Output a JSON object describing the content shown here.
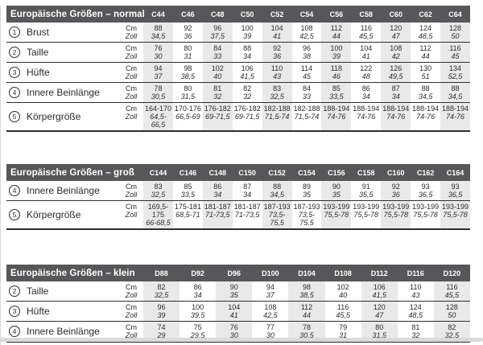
{
  "colors": {
    "header_bar": "#57575a",
    "column_shade": "#e9e9ea",
    "text": "#2b2b2d",
    "bottom_band": "#dadada"
  },
  "tables": [
    {
      "title": "Europäische Größen – normal",
      "columns": [
        "C44",
        "C46",
        "C48",
        "C50",
        "C52",
        "C54",
        "C56",
        "C58",
        "C60",
        "C62",
        "C64"
      ],
      "unit_labels": [
        "Cm",
        "Zoll"
      ],
      "rows": [
        {
          "num": "1",
          "label": "Brust",
          "cm": [
            "88",
            "92",
            "96",
            "100",
            "104",
            "108",
            "112",
            "116",
            "120",
            "124",
            "128"
          ],
          "zoll": [
            "34,5",
            "36",
            "37,5",
            "39",
            "41",
            "42,5",
            "44",
            "45,5",
            "47",
            "48,5",
            "50"
          ]
        },
        {
          "num": "2",
          "label": "Taille",
          "cm": [
            "76",
            "80",
            "84",
            "88",
            "92",
            "96",
            "100",
            "104",
            "108",
            "112",
            "116"
          ],
          "zoll": [
            "30",
            "31",
            "33",
            "34",
            "36",
            "38",
            "39",
            "41",
            "42",
            "44",
            "45"
          ]
        },
        {
          "num": "3",
          "label": "Hüfte",
          "cm": [
            "94",
            "98",
            "102",
            "106",
            "110",
            "114",
            "118",
            "122",
            "126",
            "130",
            "134"
          ],
          "zoll": [
            "37",
            "38,5",
            "40",
            "41,5",
            "43",
            "45",
            "46",
            "48",
            "49,5",
            "51",
            "52,5"
          ]
        },
        {
          "num": "4",
          "label": "Innere Beinlänge",
          "cm": [
            "78",
            "80",
            "81",
            "82",
            "83",
            "84",
            "85",
            "86",
            "87",
            "88",
            "88"
          ],
          "zoll": [
            "30,5",
            "31,5",
            "32",
            "32",
            "32,5",
            "33",
            "33,5",
            "34",
            "34",
            "34,5",
            "34,5"
          ]
        },
        {
          "num": "5",
          "label": "Körpergröße",
          "cm": [
            "164-170",
            "170-176",
            "176-182",
            "176-182",
            "182-188",
            "182-188",
            "188-194",
            "188-194",
            "188-194",
            "188-194",
            "188-194"
          ],
          "zoll": [
            "64,5-66,5",
            "66,5-69",
            "69-71,5",
            "69-71,5",
            "71,5-74",
            "71,5-74",
            "74-76",
            "74-76",
            "74-76",
            "74-76",
            "74-76"
          ]
        }
      ]
    },
    {
      "title": "Europäische Größen – groß",
      "columns": [
        "C144",
        "C146",
        "C148",
        "C150",
        "C152",
        "C154",
        "C156",
        "C158",
        "C160",
        "C162",
        "C164"
      ],
      "unit_labels": [
        "Cm",
        "Zoll"
      ],
      "rows": [
        {
          "num": "4",
          "label": "Innere Beinlänge",
          "cm": [
            "83",
            "85",
            "86",
            "87",
            "88",
            "89",
            "90",
            "91",
            "92",
            "93",
            "93"
          ],
          "zoll": [
            "32,5",
            "33,5",
            "34",
            "34",
            "34,5",
            "35",
            "35",
            "35,5",
            "36",
            "36,5",
            "36,5"
          ]
        },
        {
          "num": "5",
          "label": "Körpergröße",
          "cm": [
            "169,5-175",
            "175-181",
            "181-187",
            "181-187",
            "187-193",
            "187-193",
            "193-199",
            "193-199",
            "193-199",
            "193-199",
            "193-199"
          ],
          "zoll": [
            "66-68,5",
            "68,5-71",
            "71-73,5",
            "71-73,5",
            "73,5-75,5",
            "73,5-75,5",
            "75,5-78",
            "75,5-78",
            "75,5-78",
            "75,5-78",
            "75,5-78"
          ]
        }
      ]
    },
    {
      "title": "Europäische Größen – klein",
      "columns": [
        "D88",
        "D92",
        "D96",
        "D100",
        "D104",
        "D108",
        "D112",
        "D116",
        "D120"
      ],
      "unit_labels": [
        "Cm",
        "Zoll"
      ],
      "rows": [
        {
          "num": "2",
          "label": "Taille",
          "cm": [
            "82",
            "86",
            "90",
            "94",
            "98",
            "102",
            "106",
            "110",
            "116"
          ],
          "zoll": [
            "32,5",
            "34",
            "35",
            "37",
            "38,5",
            "40",
            "41,5",
            "43",
            "45,5"
          ]
        },
        {
          "num": "3",
          "label": "Hüfte",
          "cm": [
            "96",
            "100",
            "104",
            "108",
            "112",
            "116",
            "120",
            "124",
            "128"
          ],
          "zoll": [
            "39",
            "39,5",
            "41",
            "42,5",
            "44",
            "45,5",
            "47",
            "48,5",
            "50"
          ]
        },
        {
          "num": "4",
          "label": "Innere Beinlänge",
          "cm": [
            "74",
            "75",
            "76",
            "77",
            "78",
            "79",
            "80",
            "81",
            "82"
          ],
          "zoll": [
            "29",
            "29,5",
            "30",
            "30",
            "30,5",
            "31",
            "31,5",
            "32",
            "32,5"
          ]
        }
      ]
    }
  ]
}
